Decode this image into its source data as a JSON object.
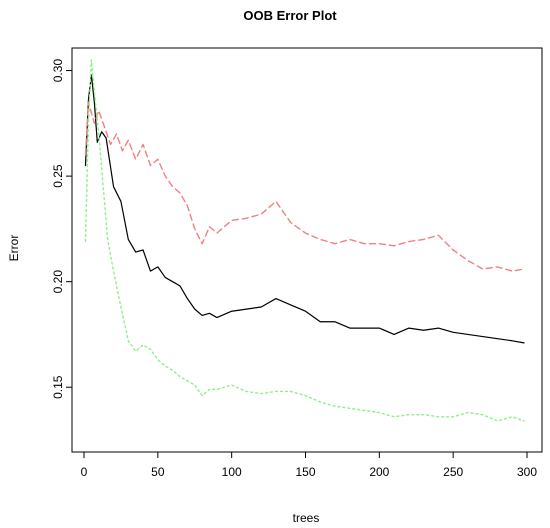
{
  "chart_data": {
    "type": "line",
    "title": "OOB Error Plot",
    "xlabel": "trees",
    "ylabel": "Error",
    "xlim": [
      0,
      300
    ],
    "ylim": [
      0.125,
      0.305
    ],
    "x_ticks": [
      0,
      50,
      100,
      150,
      200,
      250,
      300
    ],
    "y_ticks": [
      0.15,
      0.2,
      0.25,
      0.3
    ],
    "x_tick_labels": [
      "0",
      "50",
      "100",
      "150",
      "200",
      "250",
      "300"
    ],
    "y_tick_labels": [
      "0.15",
      "0.20",
      "0.25",
      "0.30"
    ],
    "grid": false,
    "legend": "none",
    "series": [
      {
        "color": "#000000",
        "line_style": "solid",
        "points": [
          [
            1,
            0.255
          ],
          [
            3,
            0.286
          ],
          [
            5,
            0.298
          ],
          [
            7,
            0.285
          ],
          [
            9,
            0.266
          ],
          [
            12,
            0.271
          ],
          [
            15,
            0.268
          ],
          [
            20,
            0.245
          ],
          [
            25,
            0.238
          ],
          [
            30,
            0.22
          ],
          [
            35,
            0.214
          ],
          [
            40,
            0.215
          ],
          [
            45,
            0.205
          ],
          [
            50,
            0.207
          ],
          [
            55,
            0.202
          ],
          [
            60,
            0.2
          ],
          [
            65,
            0.198
          ],
          [
            70,
            0.192
          ],
          [
            75,
            0.187
          ],
          [
            80,
            0.184
          ],
          [
            85,
            0.185
          ],
          [
            90,
            0.183
          ],
          [
            100,
            0.186
          ],
          [
            110,
            0.187
          ],
          [
            120,
            0.188
          ],
          [
            130,
            0.192
          ],
          [
            140,
            0.189
          ],
          [
            150,
            0.186
          ],
          [
            160,
            0.181
          ],
          [
            170,
            0.181
          ],
          [
            180,
            0.178
          ],
          [
            190,
            0.178
          ],
          [
            200,
            0.178
          ],
          [
            210,
            0.175
          ],
          [
            220,
            0.178
          ],
          [
            230,
            0.177
          ],
          [
            240,
            0.178
          ],
          [
            250,
            0.176
          ],
          [
            260,
            0.175
          ],
          [
            270,
            0.174
          ],
          [
            280,
            0.173
          ],
          [
            290,
            0.172
          ],
          [
            298,
            0.171
          ]
        ]
      },
      {
        "color": "#f08080",
        "line_style": "dashed",
        "points": [
          [
            1,
            0.26
          ],
          [
            3,
            0.285
          ],
          [
            5,
            0.28
          ],
          [
            7,
            0.275
          ],
          [
            10,
            0.281
          ],
          [
            14,
            0.273
          ],
          [
            18,
            0.265
          ],
          [
            22,
            0.27
          ],
          [
            26,
            0.262
          ],
          [
            30,
            0.267
          ],
          [
            35,
            0.258
          ],
          [
            40,
            0.265
          ],
          [
            45,
            0.255
          ],
          [
            50,
            0.258
          ],
          [
            55,
            0.25
          ],
          [
            60,
            0.245
          ],
          [
            65,
            0.242
          ],
          [
            70,
            0.236
          ],
          [
            75,
            0.225
          ],
          [
            80,
            0.218
          ],
          [
            85,
            0.226
          ],
          [
            90,
            0.223
          ],
          [
            100,
            0.229
          ],
          [
            110,
            0.23
          ],
          [
            120,
            0.232
          ],
          [
            130,
            0.238
          ],
          [
            140,
            0.228
          ],
          [
            150,
            0.223
          ],
          [
            160,
            0.22
          ],
          [
            170,
            0.218
          ],
          [
            180,
            0.22
          ],
          [
            190,
            0.218
          ],
          [
            200,
            0.218
          ],
          [
            210,
            0.217
          ],
          [
            220,
            0.219
          ],
          [
            230,
            0.22
          ],
          [
            240,
            0.222
          ],
          [
            250,
            0.215
          ],
          [
            260,
            0.21
          ],
          [
            270,
            0.206
          ],
          [
            280,
            0.207
          ],
          [
            290,
            0.205
          ],
          [
            298,
            0.206
          ]
        ]
      },
      {
        "color": "#90ee90",
        "line_style": "dotted",
        "points": [
          [
            1,
            0.219
          ],
          [
            3,
            0.275
          ],
          [
            5,
            0.305
          ],
          [
            7,
            0.29
          ],
          [
            10,
            0.27
          ],
          [
            13,
            0.245
          ],
          [
            16,
            0.22
          ],
          [
            20,
            0.205
          ],
          [
            25,
            0.188
          ],
          [
            30,
            0.172
          ],
          [
            35,
            0.167
          ],
          [
            40,
            0.17
          ],
          [
            45,
            0.168
          ],
          [
            50,
            0.163
          ],
          [
            55,
            0.16
          ],
          [
            60,
            0.158
          ],
          [
            65,
            0.155
          ],
          [
            70,
            0.153
          ],
          [
            75,
            0.151
          ],
          [
            80,
            0.146
          ],
          [
            85,
            0.149
          ],
          [
            90,
            0.149
          ],
          [
            100,
            0.151
          ],
          [
            110,
            0.148
          ],
          [
            120,
            0.147
          ],
          [
            130,
            0.148
          ],
          [
            140,
            0.148
          ],
          [
            150,
            0.146
          ],
          [
            160,
            0.143
          ],
          [
            170,
            0.141
          ],
          [
            180,
            0.14
          ],
          [
            190,
            0.139
          ],
          [
            200,
            0.138
          ],
          [
            210,
            0.136
          ],
          [
            220,
            0.137
          ],
          [
            230,
            0.137
          ],
          [
            240,
            0.136
          ],
          [
            250,
            0.136
          ],
          [
            260,
            0.138
          ],
          [
            270,
            0.137
          ],
          [
            280,
            0.134
          ],
          [
            290,
            0.136
          ],
          [
            298,
            0.134
          ]
        ]
      }
    ]
  }
}
